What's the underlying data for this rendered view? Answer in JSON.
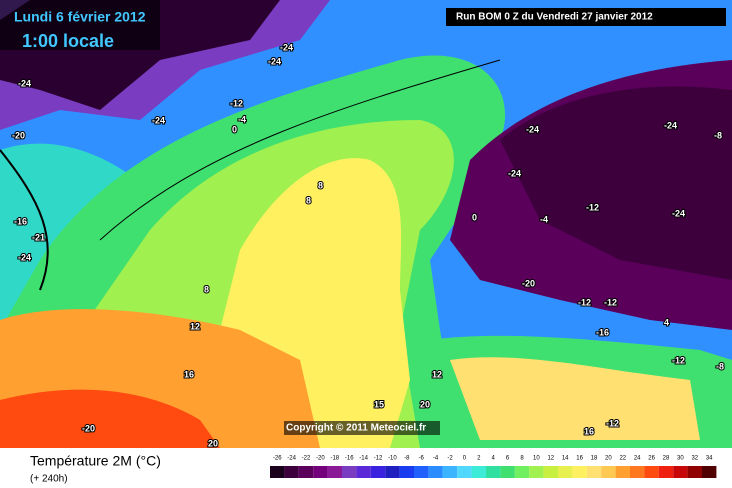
{
  "header": {
    "date": "Lundi 6 février 2012",
    "time": "1:00 locale",
    "run": "Run BOM 0 Z du Vendredi 27 janvier 2012",
    "copyright": "Copyright © 2011 Meteociel.fr"
  },
  "footer": {
    "title": "Température 2M (°C)",
    "lead": "(+ 240h)"
  },
  "contour_labels": [
    "-24",
    "-24",
    "-24",
    "-12",
    "-4",
    "0",
    "-24",
    "-20",
    "-16",
    "-21",
    "-24",
    "8",
    "8",
    "8",
    "12",
    "16",
    "-20",
    "20",
    "0",
    "-4",
    "-12",
    "-24",
    "-24",
    "-24",
    "-24",
    "-20",
    "-12",
    "-12",
    "-16",
    "-12",
    "-8",
    "4",
    "12",
    "-8",
    "16",
    "-12",
    "20",
    "15"
  ],
  "colorbar": {
    "values": [
      -26,
      -24,
      -22,
      -20,
      -18,
      -16,
      -14,
      -12,
      -10,
      -8,
      -6,
      -4,
      -2,
      0,
      2,
      4,
      6,
      8,
      10,
      12,
      14,
      16,
      18,
      20,
      22,
      24,
      26,
      28,
      30,
      32,
      34
    ],
    "colors": [
      "#1a001a",
      "#3d003d",
      "#5a005a",
      "#73007a",
      "#8a1a96",
      "#7a3cc0",
      "#5a2ad8",
      "#3a22e0",
      "#2020c0",
      "#1a3cf0",
      "#2060ff",
      "#2a8cff",
      "#3cb4ff",
      "#50d8ff",
      "#3cecd8",
      "#30e0a0",
      "#40e070",
      "#70f060",
      "#a0f050",
      "#c8f040",
      "#e8f050",
      "#fff060",
      "#ffe070",
      "#ffc850",
      "#ffa030",
      "#ff7820",
      "#ff4a10",
      "#f02010",
      "#c80808",
      "#900000",
      "#500000"
    ]
  }
}
